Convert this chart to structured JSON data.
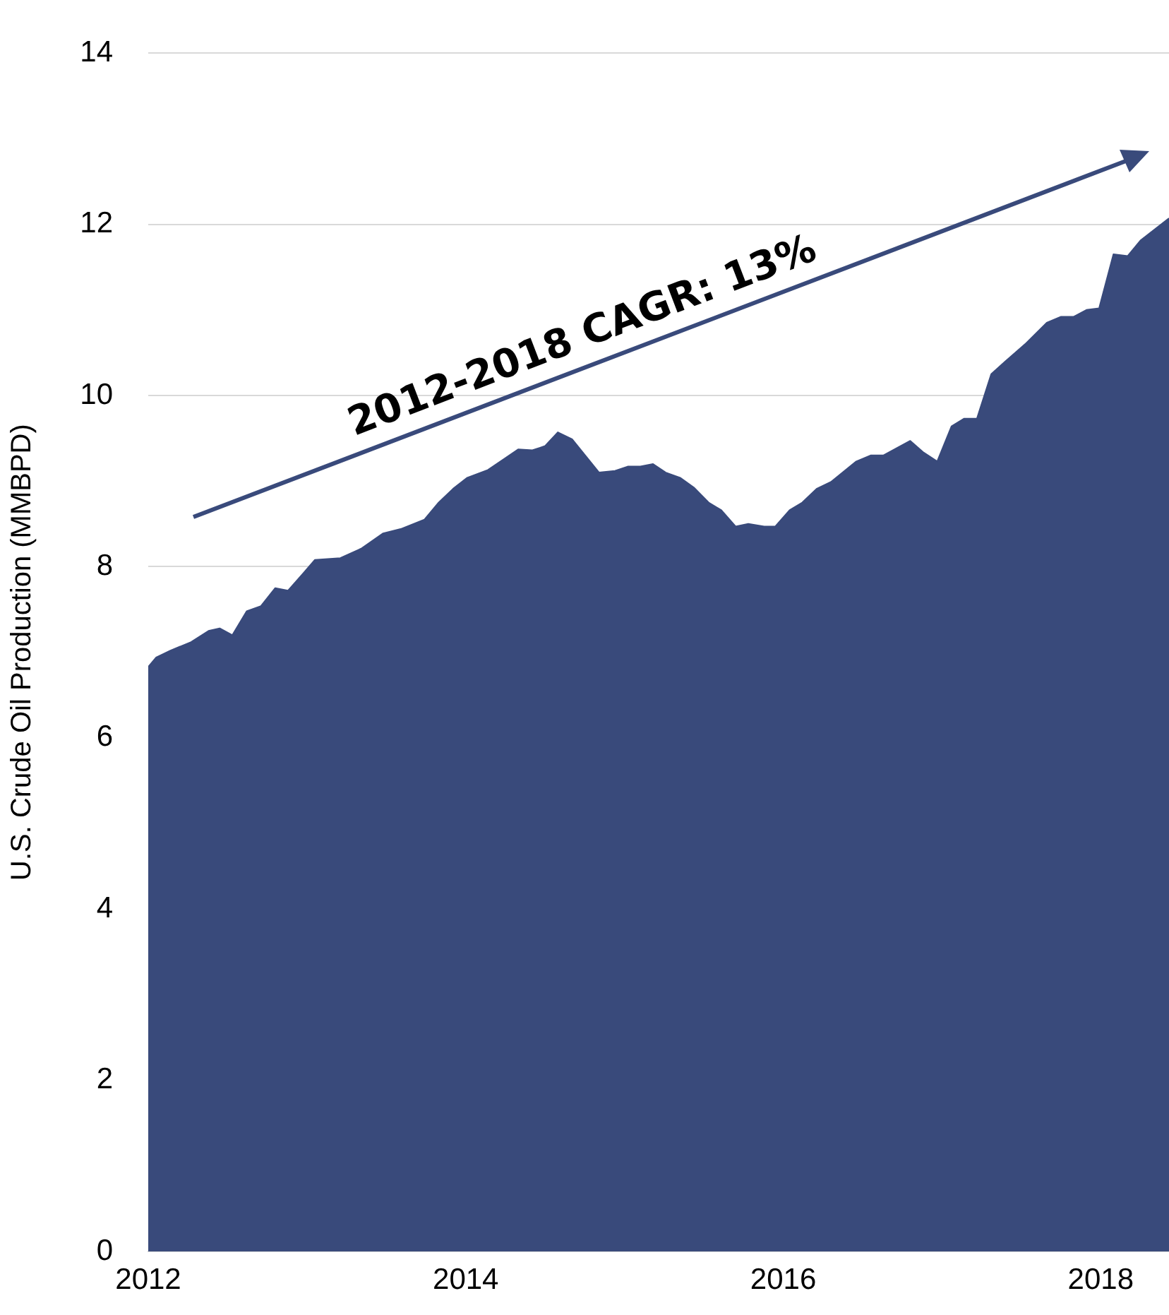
{
  "chart_data": {
    "type": "area",
    "ylabel": "U.S. Crude Oil Production (MMBPD)",
    "annotations": [
      "2012-2018 CAGR: 13%"
    ],
    "x": [
      2012.0,
      2012.05,
      2012.14,
      2012.27,
      2012.38,
      2012.45,
      2012.53,
      2012.62,
      2012.71,
      2012.8,
      2012.88,
      2012.98,
      2013.05,
      2013.21,
      2013.34,
      2013.48,
      2013.59,
      2013.74,
      2013.83,
      2013.92,
      2014.01,
      2014.14,
      2014.25,
      2014.33,
      2014.42,
      2014.5,
      2014.58,
      2014.67,
      2014.84,
      2014.94,
      2015.02,
      2015.1,
      2015.18,
      2015.26,
      2015.35,
      2015.44,
      2015.53,
      2015.61,
      2015.7,
      2015.78,
      2015.88,
      2015.95,
      2016.04,
      2016.12,
      2016.21,
      2016.3,
      2016.46,
      2016.55,
      2016.63,
      2016.72,
      2016.8,
      2016.88,
      2016.97,
      2017.06,
      2017.14,
      2017.22,
      2017.31,
      2017.4,
      2017.53,
      2017.66,
      2017.75,
      2017.83,
      2017.91,
      2017.99,
      2018.08,
      2018.17,
      2018.25,
      2018.43
    ],
    "values": [
      6.83,
      6.94,
      7.02,
      7.12,
      7.25,
      7.28,
      7.2,
      7.48,
      7.54,
      7.75,
      7.72,
      7.93,
      8.08,
      8.1,
      8.21,
      8.39,
      8.44,
      8.55,
      8.75,
      8.91,
      9.04,
      9.13,
      9.27,
      9.37,
      9.36,
      9.41,
      9.57,
      9.49,
      9.1,
      9.12,
      9.17,
      9.17,
      9.2,
      9.1,
      9.04,
      8.92,
      8.75,
      8.66,
      8.47,
      8.5,
      8.47,
      8.47,
      8.66,
      8.75,
      8.91,
      8.99,
      9.23,
      9.3,
      9.3,
      9.39,
      9.47,
      9.34,
      9.23,
      9.64,
      9.73,
      9.73,
      10.25,
      10.4,
      10.61,
      10.85,
      10.92,
      10.92,
      11.0,
      11.02,
      11.65,
      11.63,
      11.81,
      12.07
    ],
    "color": "#394a7b",
    "xlim": [
      2012,
      2018.43
    ],
    "ylim": [
      0,
      14
    ],
    "xticks": [
      2012,
      2014,
      2016,
      2018
    ],
    "yticks": [
      0,
      2,
      4,
      6,
      8,
      10,
      12,
      14
    ],
    "grid": "y"
  }
}
